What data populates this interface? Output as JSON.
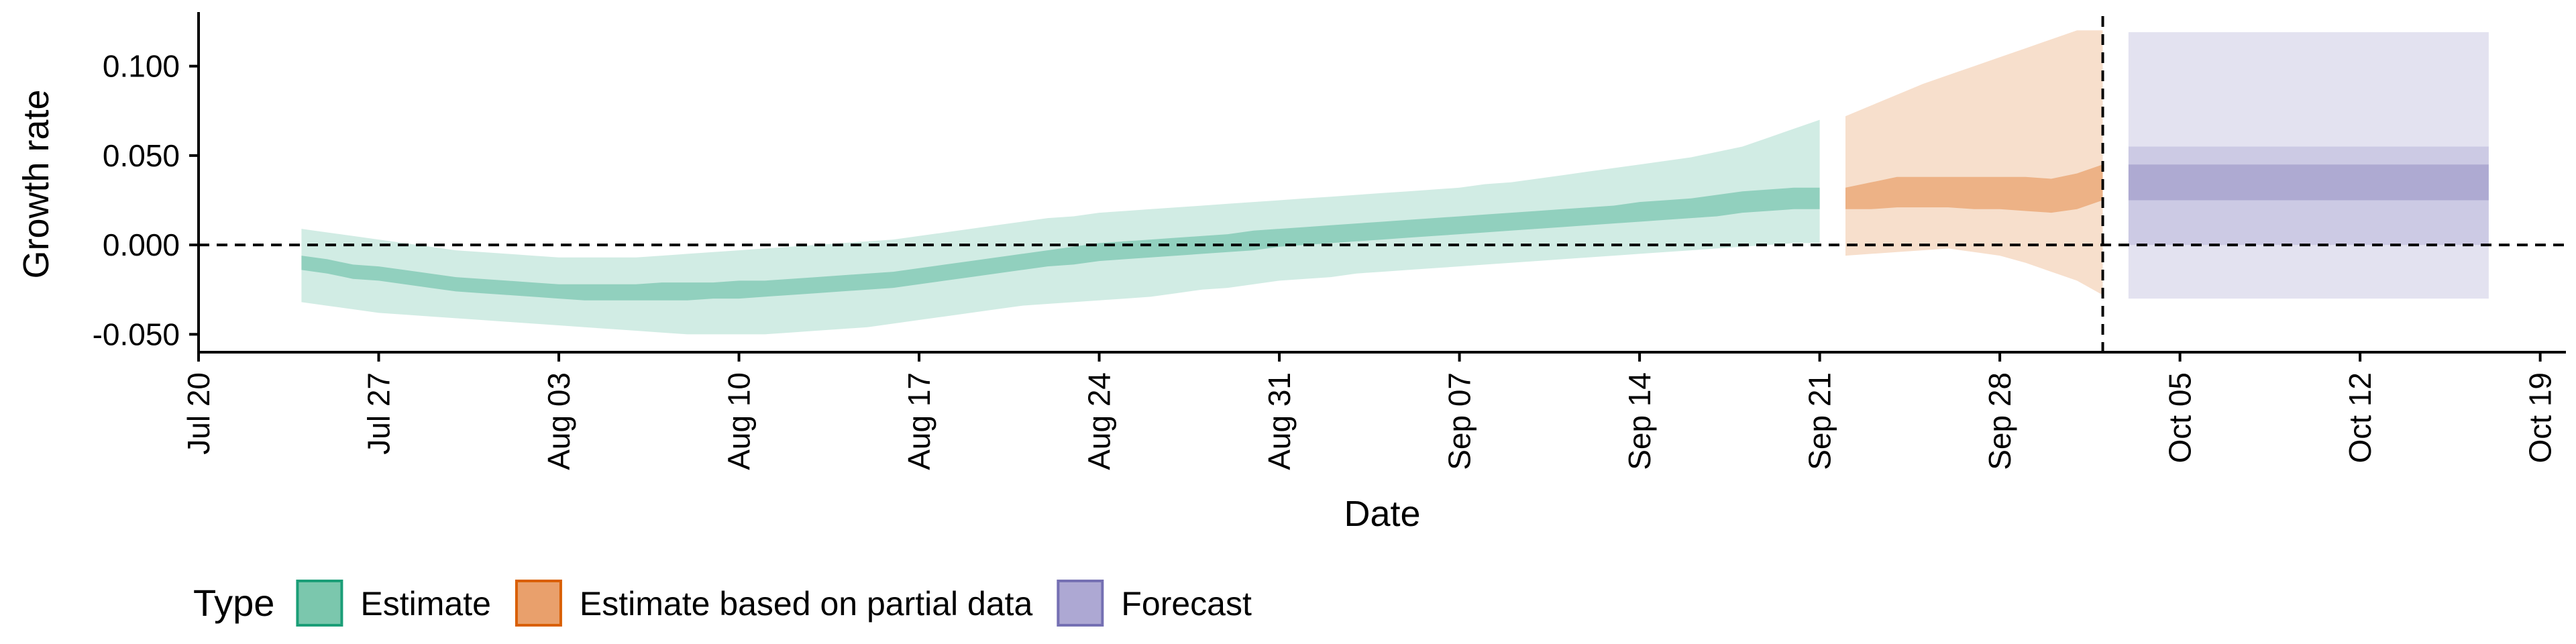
{
  "chart_data": {
    "type": "area",
    "xlabel": "Date",
    "ylabel": "Growth rate",
    "xlim": [
      "2020-07-20",
      "2020-10-20"
    ],
    "ylim": [
      -0.06,
      0.128
    ],
    "x_ticks": [
      "Jul 20",
      "Jul 27",
      "Aug 03",
      "Aug 10",
      "Aug 17",
      "Aug 24",
      "Aug 31",
      "Sep 07",
      "Sep 14",
      "Sep 21",
      "Sep 28",
      "Oct 05",
      "Oct 12",
      "Oct 19"
    ],
    "y_ticks": [
      "0.100",
      "0.050",
      "0.000",
      "-0.050"
    ],
    "y_tick_values": [
      0.1,
      0.05,
      0.0,
      -0.05
    ],
    "hline_y": 0,
    "vline_x": "2020-10-02",
    "grid": false,
    "legend": {
      "title": "Type",
      "position": "bottom-left",
      "entries": [
        {
          "label": "Estimate",
          "fill": "#7bc7ad",
          "border": "#1b9e77"
        },
        {
          "label": "Estimate based on partial data",
          "fill": "#e9a06c",
          "border": "#d95f02"
        },
        {
          "label": "Forecast",
          "fill": "#ada8d3",
          "border": "#7570b3"
        }
      ]
    },
    "series": [
      {
        "name": "Estimate",
        "color": "#1b9e77",
        "x": [
          "2020-07-24",
          "2020-07-25",
          "2020-07-26",
          "2020-07-27",
          "2020-07-28",
          "2020-07-29",
          "2020-07-30",
          "2020-07-31",
          "2020-08-01",
          "2020-08-02",
          "2020-08-03",
          "2020-08-04",
          "2020-08-05",
          "2020-08-06",
          "2020-08-07",
          "2020-08-08",
          "2020-08-09",
          "2020-08-10",
          "2020-08-11",
          "2020-08-12",
          "2020-08-13",
          "2020-08-14",
          "2020-08-15",
          "2020-08-16",
          "2020-08-17",
          "2020-08-18",
          "2020-08-19",
          "2020-08-20",
          "2020-08-21",
          "2020-08-22",
          "2020-08-23",
          "2020-08-24",
          "2020-08-25",
          "2020-08-26",
          "2020-08-27",
          "2020-08-28",
          "2020-08-29",
          "2020-08-30",
          "2020-08-31",
          "2020-09-01",
          "2020-09-02",
          "2020-09-03",
          "2020-09-04",
          "2020-09-05",
          "2020-09-06",
          "2020-09-07",
          "2020-09-08",
          "2020-09-09",
          "2020-09-10",
          "2020-09-11",
          "2020-09-12",
          "2020-09-13",
          "2020-09-14",
          "2020-09-15",
          "2020-09-16",
          "2020-09-17",
          "2020-09-18",
          "2020-09-19",
          "2020-09-20",
          "2020-09-21"
        ],
        "median": [
          -0.01,
          -0.012,
          -0.015,
          -0.016,
          -0.018,
          -0.02,
          -0.022,
          -0.023,
          -0.024,
          -0.025,
          -0.026,
          -0.026,
          -0.027,
          -0.026,
          -0.026,
          -0.026,
          -0.026,
          -0.025,
          -0.025,
          -0.024,
          -0.023,
          -0.022,
          -0.021,
          -0.02,
          -0.018,
          -0.016,
          -0.014,
          -0.012,
          -0.01,
          -0.008,
          -0.006,
          -0.004,
          -0.003,
          -0.002,
          -0.001,
          0.0,
          0.001,
          0.003,
          0.004,
          0.005,
          0.006,
          0.007,
          0.008,
          0.009,
          0.01,
          0.011,
          0.012,
          0.013,
          0.014,
          0.015,
          0.016,
          0.017,
          0.018,
          0.019,
          0.021,
          0.022,
          0.024,
          0.025,
          0.026,
          0.026
        ],
        "inner_lower": [
          -0.014,
          -0.016,
          -0.019,
          -0.02,
          -0.022,
          -0.024,
          -0.026,
          -0.027,
          -0.028,
          -0.029,
          -0.03,
          -0.031,
          -0.031,
          -0.031,
          -0.031,
          -0.031,
          -0.03,
          -0.03,
          -0.029,
          -0.028,
          -0.027,
          -0.026,
          -0.025,
          -0.024,
          -0.022,
          -0.02,
          -0.018,
          -0.016,
          -0.014,
          -0.012,
          -0.011,
          -0.009,
          -0.008,
          -0.007,
          -0.006,
          -0.005,
          -0.004,
          -0.003,
          -0.001,
          0.0,
          0.001,
          0.002,
          0.003,
          0.004,
          0.005,
          0.006,
          0.007,
          0.008,
          0.009,
          0.01,
          0.011,
          0.012,
          0.013,
          0.014,
          0.015,
          0.016,
          0.018,
          0.019,
          0.02,
          0.02
        ],
        "inner_upper": [
          -0.006,
          -0.008,
          -0.011,
          -0.012,
          -0.014,
          -0.016,
          -0.018,
          -0.019,
          -0.02,
          -0.021,
          -0.022,
          -0.022,
          -0.022,
          -0.022,
          -0.021,
          -0.021,
          -0.021,
          -0.02,
          -0.02,
          -0.019,
          -0.018,
          -0.017,
          -0.016,
          -0.015,
          -0.013,
          -0.011,
          -0.009,
          -0.007,
          -0.005,
          -0.003,
          -0.001,
          0.001,
          0.002,
          0.003,
          0.004,
          0.005,
          0.006,
          0.008,
          0.009,
          0.01,
          0.011,
          0.012,
          0.013,
          0.014,
          0.015,
          0.016,
          0.017,
          0.018,
          0.019,
          0.02,
          0.021,
          0.022,
          0.024,
          0.025,
          0.026,
          0.028,
          0.03,
          0.031,
          0.032,
          0.032
        ],
        "outer_lower": [
          -0.032,
          -0.034,
          -0.036,
          -0.038,
          -0.039,
          -0.04,
          -0.041,
          -0.042,
          -0.043,
          -0.044,
          -0.045,
          -0.046,
          -0.047,
          -0.048,
          -0.049,
          -0.05,
          -0.05,
          -0.05,
          -0.05,
          -0.049,
          -0.048,
          -0.047,
          -0.046,
          -0.044,
          -0.042,
          -0.04,
          -0.038,
          -0.036,
          -0.034,
          -0.033,
          -0.032,
          -0.031,
          -0.03,
          -0.029,
          -0.027,
          -0.025,
          -0.024,
          -0.022,
          -0.02,
          -0.019,
          -0.018,
          -0.016,
          -0.015,
          -0.014,
          -0.013,
          -0.012,
          -0.011,
          -0.01,
          -0.009,
          -0.008,
          -0.007,
          -0.006,
          -0.005,
          -0.004,
          -0.003,
          -0.002,
          -0.001,
          0.0,
          0.001,
          0.001
        ],
        "outer_upper": [
          0.009,
          0.007,
          0.005,
          0.003,
          0.001,
          -0.001,
          -0.003,
          -0.004,
          -0.005,
          -0.006,
          -0.007,
          -0.007,
          -0.007,
          -0.007,
          -0.006,
          -0.005,
          -0.004,
          -0.003,
          -0.002,
          -0.001,
          0.0,
          0.001,
          0.002,
          0.003,
          0.005,
          0.007,
          0.009,
          0.011,
          0.013,
          0.015,
          0.016,
          0.018,
          0.019,
          0.02,
          0.021,
          0.022,
          0.023,
          0.024,
          0.025,
          0.026,
          0.027,
          0.028,
          0.029,
          0.03,
          0.031,
          0.032,
          0.034,
          0.035,
          0.037,
          0.039,
          0.041,
          0.043,
          0.045,
          0.047,
          0.049,
          0.052,
          0.055,
          0.06,
          0.065,
          0.07
        ]
      },
      {
        "name": "Estimate based on partial data",
        "color": "#d95f02",
        "x": [
          "2020-09-22",
          "2020-09-23",
          "2020-09-24",
          "2020-09-25",
          "2020-09-26",
          "2020-09-27",
          "2020-09-28",
          "2020-09-29",
          "2020-09-30",
          "2020-10-01",
          "2020-10-02"
        ],
        "median": [
          0.026,
          0.028,
          0.03,
          0.031,
          0.031,
          0.03,
          0.03,
          0.03,
          0.029,
          0.031,
          0.035
        ],
        "inner_lower": [
          0.02,
          0.02,
          0.021,
          0.021,
          0.021,
          0.02,
          0.02,
          0.019,
          0.018,
          0.02,
          0.025
        ],
        "inner_upper": [
          0.032,
          0.035,
          0.038,
          0.038,
          0.038,
          0.038,
          0.038,
          0.038,
          0.037,
          0.04,
          0.045
        ],
        "outer_lower": [
          -0.006,
          -0.005,
          -0.004,
          -0.003,
          -0.002,
          -0.004,
          -0.006,
          -0.01,
          -0.015,
          -0.02,
          -0.028
        ],
        "outer_upper": [
          0.072,
          0.078,
          0.084,
          0.09,
          0.095,
          0.1,
          0.105,
          0.11,
          0.115,
          0.12,
          0.12
        ]
      },
      {
        "name": "Forecast",
        "color": "#7570b3",
        "x": [
          "2020-10-03",
          "2020-10-17"
        ],
        "median": [
          0.035,
          0.035
        ],
        "inner_lower": [
          0.025,
          0.025
        ],
        "inner_upper": [
          0.045,
          0.045
        ],
        "outer_lower": [
          -0.03,
          -0.03
        ],
        "outer_upper": [
          0.119,
          0.119
        ],
        "mid_lower": [
          0.0,
          0.0
        ],
        "mid_upper": [
          0.055,
          0.055
        ]
      }
    ]
  }
}
